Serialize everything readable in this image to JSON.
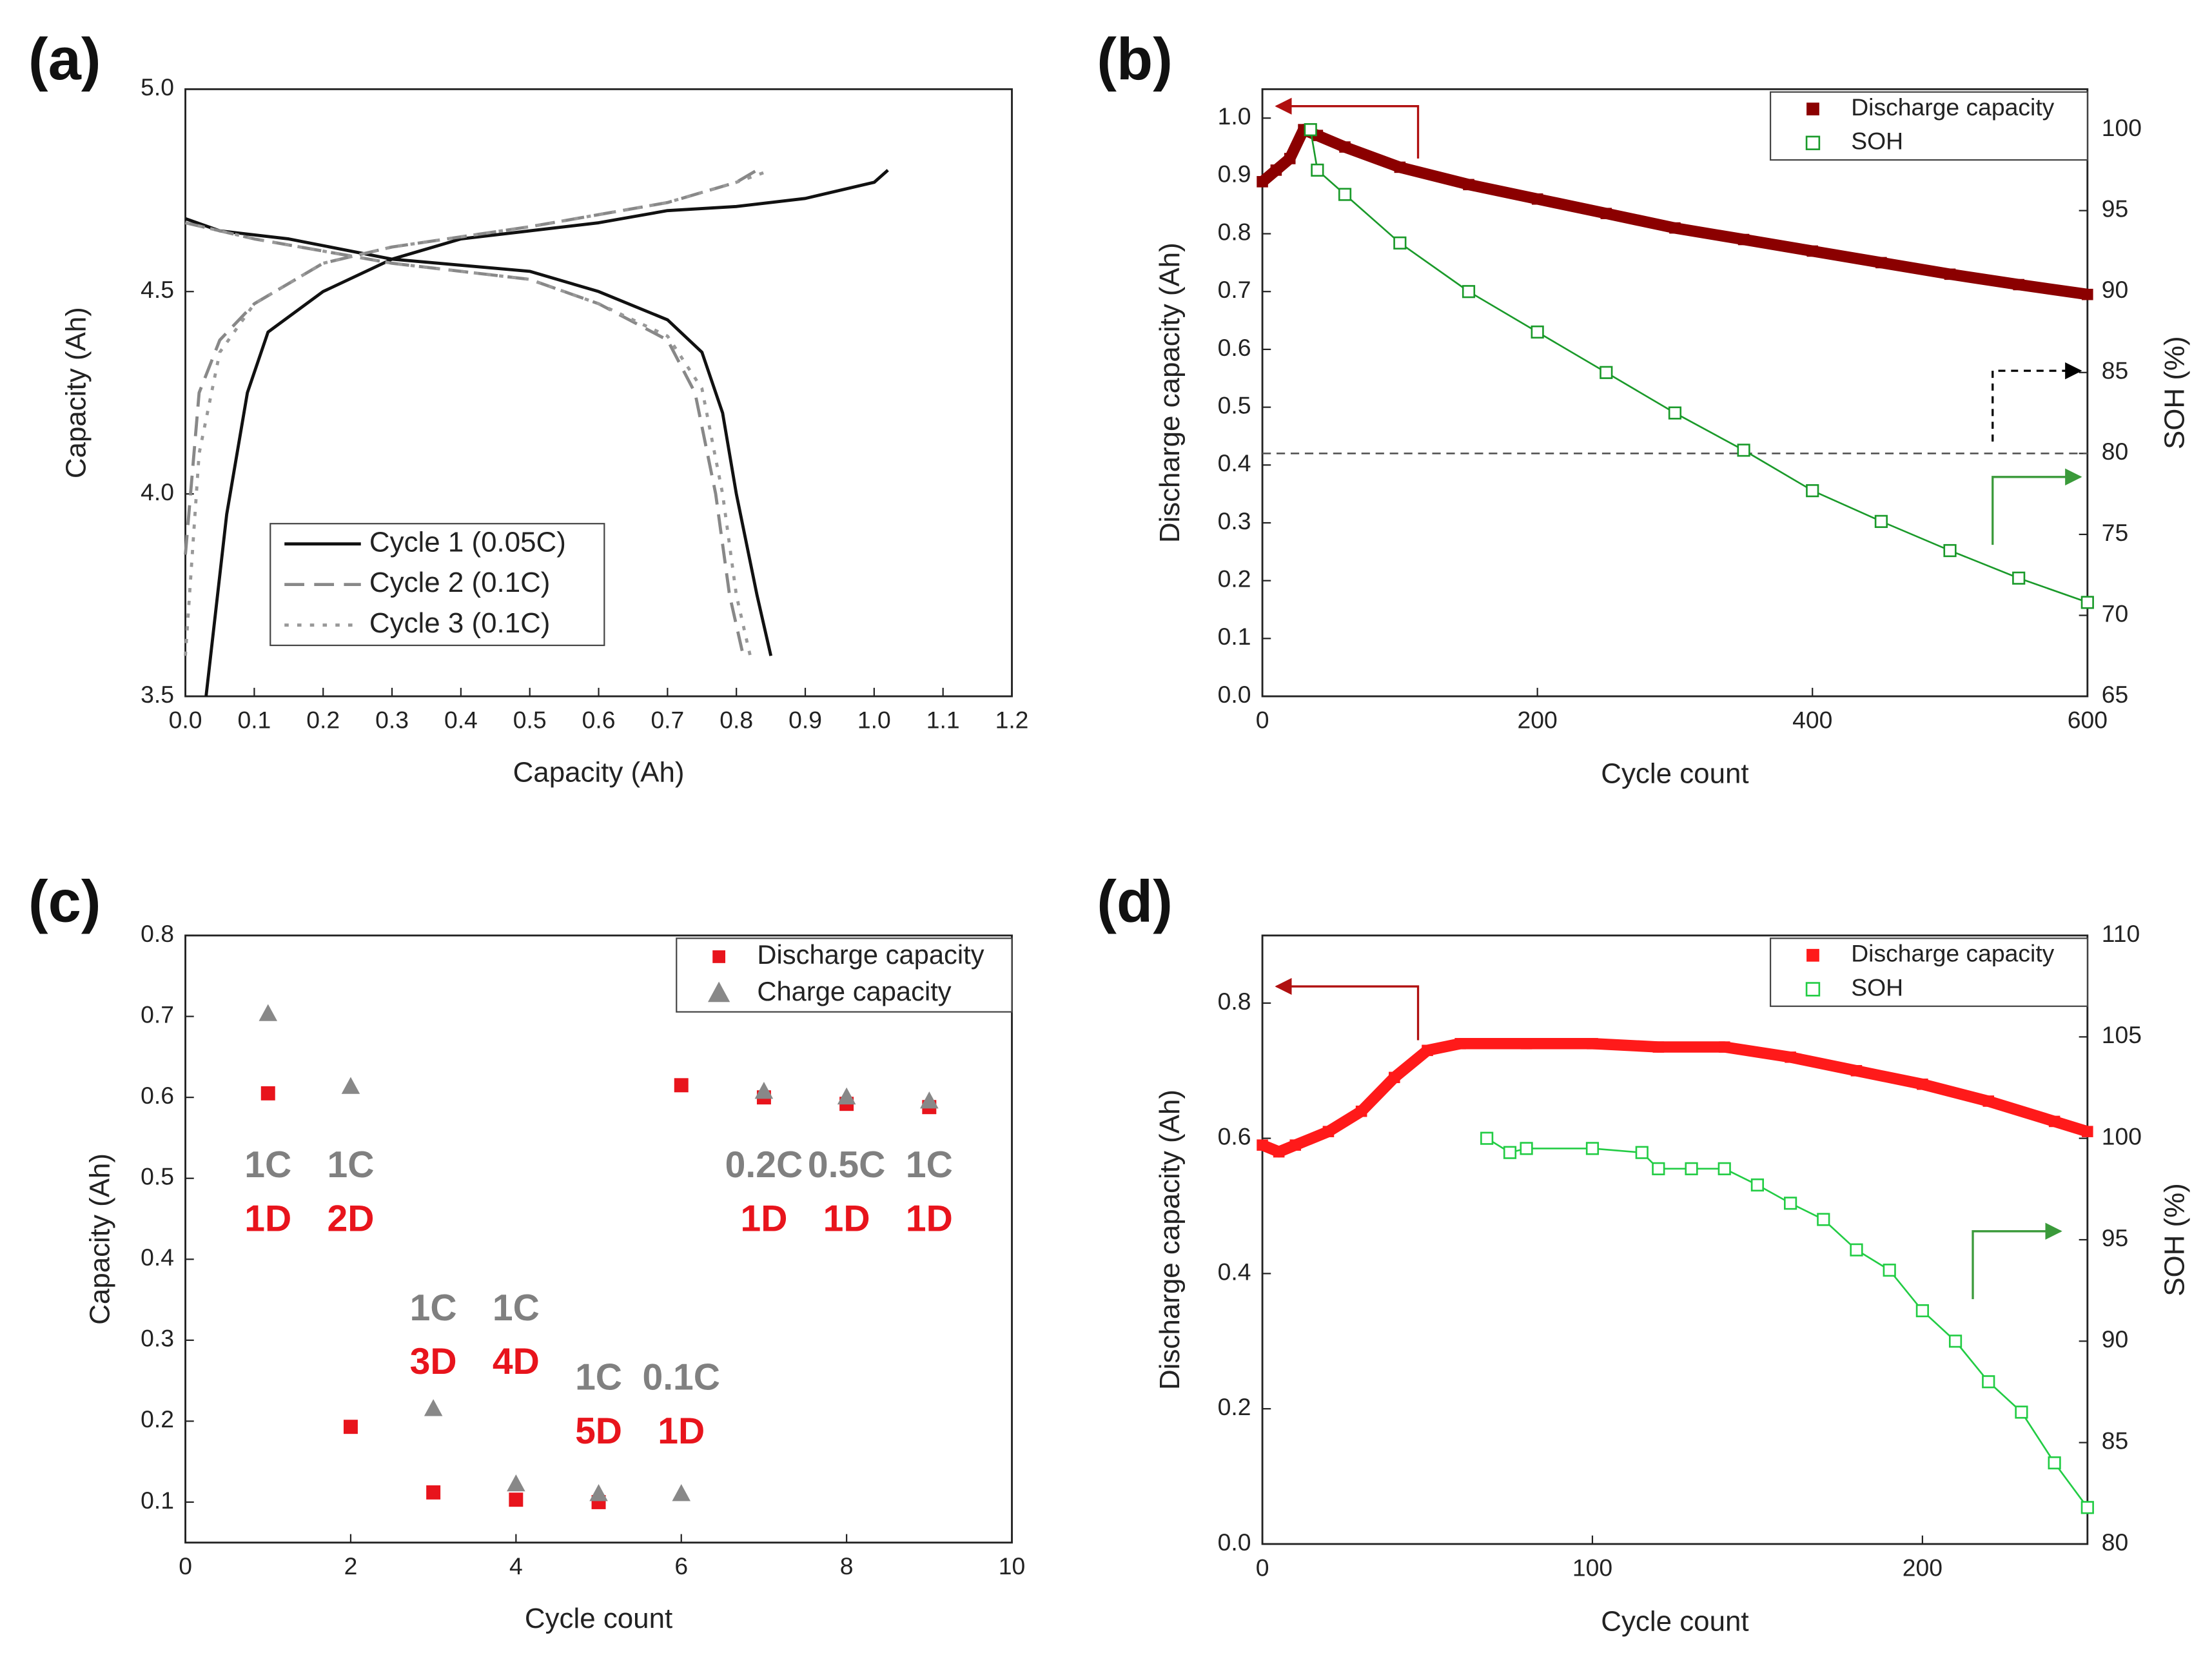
{
  "chart_data": [
    {
      "type": "line",
      "label": "(a)",
      "xlabel": "Capacity (Ah)",
      "ylabel": "Capacity (Ah)",
      "legend": "lower left",
      "xlim": [
        0,
        1.2
      ],
      "xticks": [
        {
          "value": 0,
          "label": "0.0"
        },
        0.1,
        0.2,
        0.3,
        0.4,
        0.5,
        0.6,
        0.7,
        0.8,
        0.9,
        {
          "value": 1,
          "label": "1.0"
        },
        1.1,
        1.2
      ],
      "ylim": [
        3.5,
        5
      ],
      "yticks": [
        3.5,
        {
          "value": 4,
          "label": "4.0"
        },
        4.5,
        {
          "value": 5,
          "label": "5.0"
        }
      ],
      "series": [
        {
          "name": "Cycle 1 (0.05C)",
          "color": "#111111",
          "style": "solid",
          "x": [
            0.03,
            0.06,
            0.09,
            0.12,
            0.2,
            0.3,
            0.4,
            0.5,
            0.6,
            0.7,
            0.8,
            0.9,
            1.0,
            1.02,
            null,
            0,
            0.05,
            0.15,
            0.3,
            0.5,
            0.6,
            0.7,
            0.75,
            0.78,
            0.8,
            0.83,
            0.85
          ],
          "values": [
            3.5,
            3.95,
            4.25,
            4.4,
            4.5,
            4.58,
            4.63,
            4.65,
            4.67,
            4.7,
            4.71,
            4.73,
            4.77,
            4.8,
            null,
            4.68,
            4.65,
            4.63,
            4.58,
            4.55,
            4.5,
            4.43,
            4.35,
            4.2,
            4.0,
            3.75,
            3.6
          ]
        },
        {
          "name": "Cycle 2 (0.1C)",
          "color": "#888888",
          "style": "dashed",
          "x": [
            0,
            0.02,
            0.05,
            0.1,
            0.2,
            0.3,
            0.5,
            0.7,
            0.8,
            0.83,
            null,
            0,
            0.1,
            0.3,
            0.5,
            0.6,
            0.7,
            0.74,
            0.77,
            0.79,
            0.81
          ],
          "values": [
            3.85,
            4.25,
            4.38,
            4.47,
            4.57,
            4.61,
            4.66,
            4.72,
            4.77,
            4.8,
            null,
            4.67,
            4.63,
            4.57,
            4.53,
            4.47,
            4.38,
            4.25,
            4.0,
            3.75,
            3.6
          ]
        },
        {
          "name": "Cycle 3 (0.1C)",
          "color": "#999999",
          "style": "dotted",
          "x": [
            0,
            0.02,
            0.05,
            0.1,
            0.2,
            0.3,
            0.5,
            0.7,
            0.8,
            0.85,
            null,
            0,
            0.1,
            0.3,
            0.5,
            0.6,
            0.7,
            0.75,
            0.78,
            0.8,
            0.82
          ],
          "values": [
            3.6,
            4.1,
            4.35,
            4.47,
            4.57,
            4.61,
            4.66,
            4.72,
            4.77,
            4.8,
            null,
            4.67,
            4.63,
            4.57,
            4.53,
            4.47,
            4.39,
            4.26,
            4.0,
            3.75,
            3.6
          ]
        }
      ]
    },
    {
      "type": "line",
      "label": "(b)",
      "xlabel": "Cycle count",
      "ylabel": "Discharge capacity (Ah)",
      "y2label": "SOH (%)",
      "legend": "upper right",
      "xlim": [
        0,
        600
      ],
      "xticks": [
        0,
        200,
        400,
        600
      ],
      "ylim": [
        0,
        1.05
      ],
      "yticks": [
        {
          "value": 0,
          "label": "0.0"
        },
        0.1,
        0.2,
        0.3,
        0.4,
        0.5,
        0.6,
        0.7,
        0.8,
        0.9,
        {
          "value": 1,
          "label": "1.0"
        }
      ],
      "y2lim": [
        65,
        102.5
      ],
      "y2ticks": [
        65,
        70,
        75,
        80,
        85,
        90,
        95,
        100
      ],
      "reference_line": {
        "axis": "y2",
        "value": 80
      },
      "series": [
        {
          "name": "Discharge capacity",
          "color": "#8b0000",
          "marker": "square",
          "x": [
            0,
            10,
            20,
            30,
            40,
            60,
            100,
            150,
            200,
            250,
            300,
            350,
            400,
            450,
            500,
            550,
            600
          ],
          "values": [
            0.89,
            0.91,
            0.93,
            0.98,
            0.97,
            0.95,
            0.915,
            0.885,
            0.86,
            0.835,
            0.81,
            0.79,
            0.77,
            0.75,
            0.73,
            0.712,
            0.695
          ]
        },
        {
          "name": "SOH",
          "color": "#1a9a2a",
          "marker": "open-square",
          "axis": "y2",
          "x": [
            35,
            40,
            60,
            100,
            150,
            200,
            250,
            300,
            350,
            400,
            450,
            500,
            550,
            600
          ],
          "values": [
            100,
            97.5,
            96,
            93,
            90,
            87.5,
            85,
            82.5,
            80.2,
            77.7,
            75.8,
            74,
            72.3,
            70.8
          ]
        }
      ]
    },
    {
      "type": "scatter",
      "label": "(c)",
      "xlabel": "Cycle count",
      "ylabel": "Capacity (Ah)",
      "legend": "upper right",
      "xlim": [
        0,
        10
      ],
      "xticks": [
        0,
        2,
        4,
        6,
        8,
        10
      ],
      "ylim": [
        0.05,
        0.8
      ],
      "yticks": [
        0.1,
        0.2,
        0.3,
        0.4,
        0.5,
        0.6,
        0.7,
        0.8
      ],
      "series": [
        {
          "name": "Discharge capacity",
          "color": "#e8141c",
          "marker": "square",
          "x": [
            1,
            2,
            3,
            4,
            5,
            6,
            7,
            8,
            9
          ],
          "values": [
            0.605,
            0.193,
            0.112,
            0.103,
            0.1,
            0.615,
            0.6,
            0.592,
            0.588
          ]
        },
        {
          "name": "Charge capacity",
          "color": "#888888",
          "marker": "triangle",
          "x": [
            1,
            2,
            3,
            4,
            5,
            6,
            7,
            8,
            9
          ],
          "values": [
            0.703,
            0.613,
            0.215,
            0.122,
            0.11,
            0.11,
            0.607,
            0.6,
            0.595
          ]
        }
      ],
      "annotations": [
        {
          "cycle": 1,
          "charge": "1C",
          "discharge": "1D"
        },
        {
          "cycle": 2,
          "charge": "1C",
          "discharge": "2D"
        },
        {
          "cycle": 3,
          "charge": "1C",
          "discharge": "3D"
        },
        {
          "cycle": 4,
          "charge": "1C",
          "discharge": "4D"
        },
        {
          "cycle": 5,
          "charge": "1C",
          "discharge": "5D"
        },
        {
          "cycle": 6,
          "charge": "0.1C",
          "discharge": "1D"
        },
        {
          "cycle": 7,
          "charge": "0.2C",
          "discharge": "1D"
        },
        {
          "cycle": 8,
          "charge": "0.5C",
          "discharge": "1D"
        },
        {
          "cycle": 9,
          "charge": "1C",
          "discharge": "1D"
        }
      ]
    },
    {
      "type": "line",
      "label": "(d)",
      "xlabel": "Cycle count",
      "ylabel": "Discharge capacity (Ah)",
      "y2label": "SOH (%)",
      "legend": "upper right",
      "xlim": [
        0,
        250
      ],
      "xticks": [
        0,
        100,
        200
      ],
      "ylim": [
        0,
        0.9
      ],
      "yticks": [
        {
          "value": 0,
          "label": "0.0"
        },
        0.2,
        0.4,
        0.6,
        0.8
      ],
      "y2lim": [
        80,
        110
      ],
      "y2ticks": [
        80,
        85,
        90,
        95,
        100,
        105,
        110
      ],
      "series": [
        {
          "name": "Discharge capacity",
          "color": "#ff1a1a",
          "marker": "square",
          "x": [
            0,
            5,
            10,
            20,
            30,
            40,
            50,
            60,
            80,
            100,
            120,
            140,
            160,
            180,
            200,
            220,
            240,
            250
          ],
          "values": [
            0.59,
            0.58,
            0.59,
            0.61,
            0.64,
            0.69,
            0.73,
            0.74,
            0.74,
            0.74,
            0.735,
            0.735,
            0.72,
            0.7,
            0.68,
            0.655,
            0.625,
            0.61
          ]
        },
        {
          "name": "SOH",
          "color": "#22cc44",
          "marker": "open-square",
          "axis": "y2",
          "x": [
            68,
            75,
            80,
            100,
            115,
            120,
            130,
            140,
            150,
            160,
            170,
            180,
            190,
            200,
            210,
            220,
            230,
            240,
            250
          ],
          "values": [
            100,
            99.3,
            99.5,
            99.5,
            99.3,
            98.5,
            98.5,
            98.5,
            97.7,
            96.8,
            96,
            94.5,
            93.5,
            91.5,
            90,
            88,
            86.5,
            84,
            81.8
          ]
        }
      ]
    }
  ]
}
